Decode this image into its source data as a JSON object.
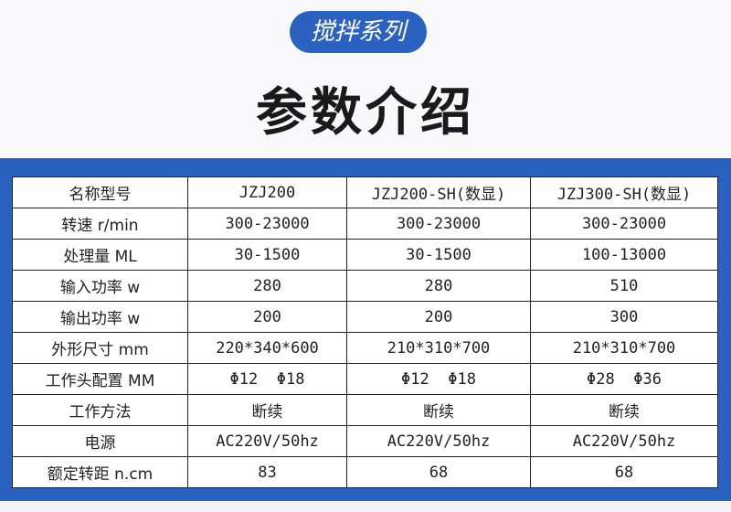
{
  "header": {
    "series_badge": "搅拌系列",
    "title": "参数介绍"
  },
  "colors": {
    "accent": "#2b62c2"
  },
  "table": {
    "rows": [
      [
        "名称型号",
        "JZJ200",
        "JZJ200-SH(数显)",
        "JZJ300-SH(数显)"
      ],
      [
        "转速 r/min",
        "300-23000",
        "300-23000",
        "300-23000"
      ],
      [
        "处理量 ML",
        "30-1500",
        "30-1500",
        "100-13000"
      ],
      [
        "输入功率 w",
        "280",
        "280",
        "510"
      ],
      [
        "输出功率 w",
        "200",
        "200",
        "300"
      ],
      [
        "外形尺寸 mm",
        "220*340*600",
        "210*310*700",
        "210*310*700"
      ],
      [
        "工作头配置 MM",
        "Φ12  Φ18",
        "Φ12  Φ18",
        "Φ28  Φ36"
      ],
      [
        "工作方法",
        "断续",
        "断续",
        "断续"
      ],
      [
        "电源",
        "AC220V/50hz",
        "AC220V/50hz",
        "AC220V/50hz"
      ],
      [
        "额定转距 n.cm",
        "83",
        "68",
        "68"
      ]
    ]
  }
}
